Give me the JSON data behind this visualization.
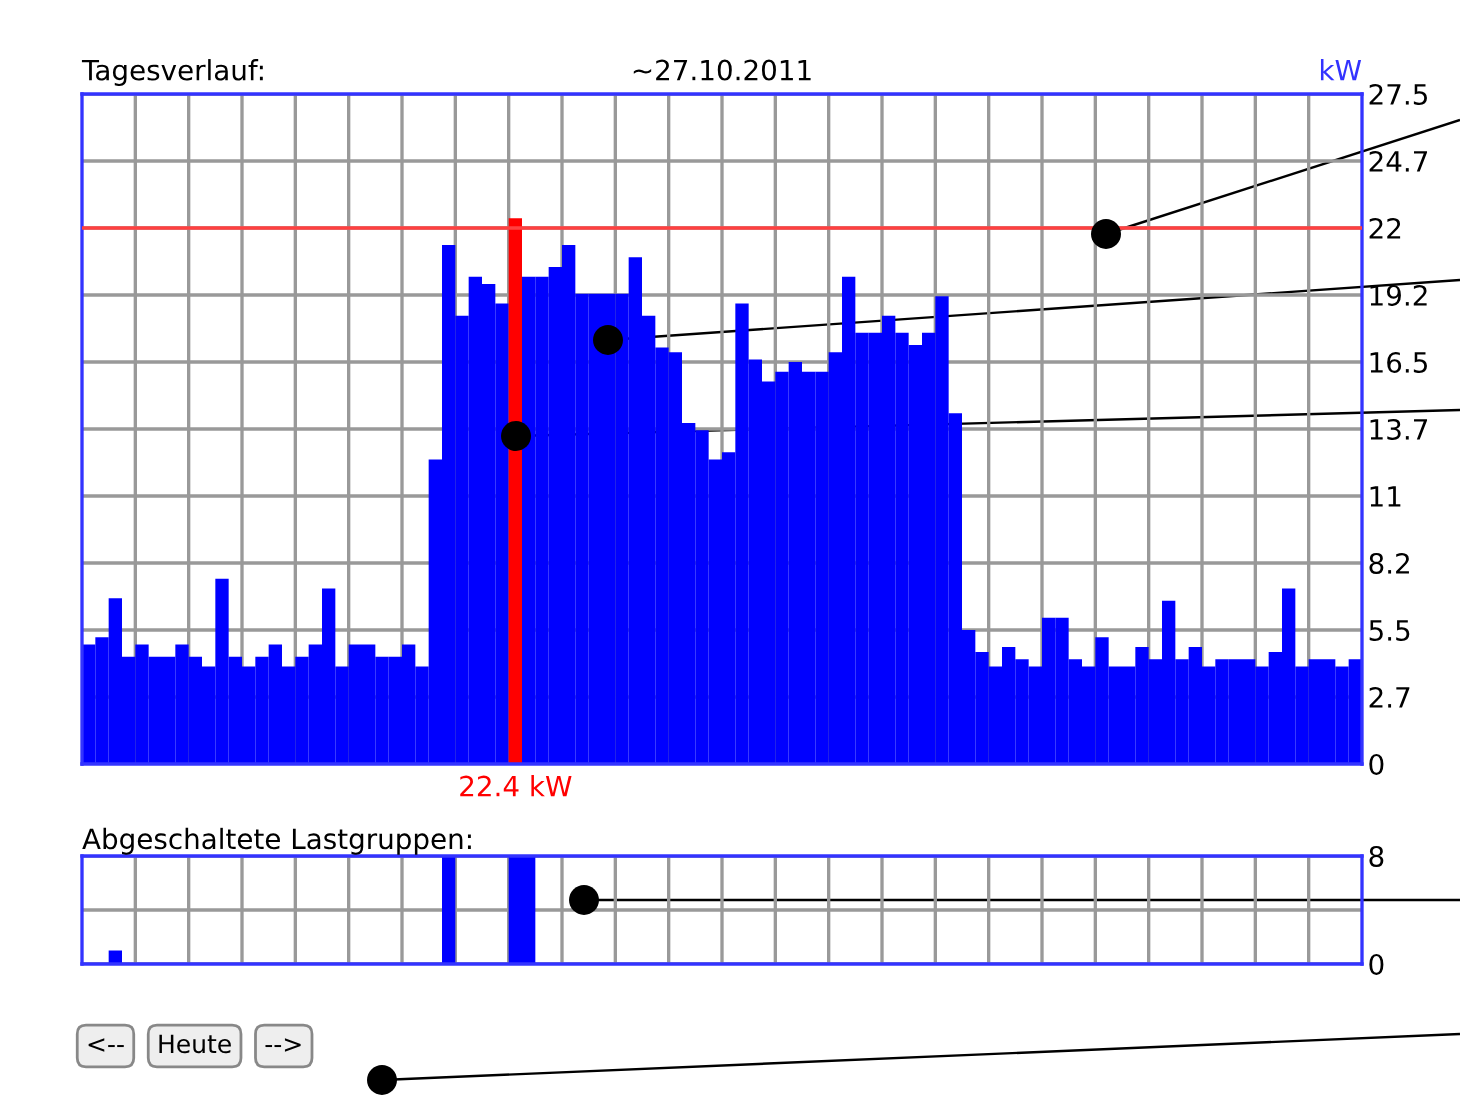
{
  "chart_data": [
    {
      "type": "bar",
      "title": "Tagesverlauf:",
      "subtitle": "~27.10.2011",
      "ylabel": "kW",
      "categories": [
        null,
        null,
        null,
        null,
        null,
        null,
        null,
        null,
        null,
        null,
        null,
        null,
        null,
        null,
        null,
        null,
        null,
        null,
        null,
        null,
        null,
        null,
        null,
        null,
        null,
        null,
        null,
        null,
        null,
        null,
        null,
        null,
        null,
        null,
        null,
        null,
        null,
        null,
        null,
        null,
        null,
        null,
        null,
        null,
        null,
        null,
        null,
        null,
        null,
        null,
        null,
        null,
        null,
        null,
        null,
        null,
        null,
        null,
        null,
        null,
        null,
        null,
        null,
        null,
        null,
        null,
        null,
        null,
        null,
        null,
        null,
        null,
        null,
        null,
        null,
        null,
        null,
        null,
        null,
        null,
        null,
        null,
        null,
        null,
        null,
        null,
        null,
        null,
        null,
        null,
        null,
        null,
        null,
        null,
        null,
        null
      ],
      "values": [
        4.9,
        5.2,
        6.8,
        4.4,
        4.9,
        4.4,
        4.4,
        4.9,
        4.4,
        4.0,
        7.6,
        4.4,
        4.0,
        4.4,
        4.9,
        4.0,
        4.4,
        4.9,
        7.2,
        4.0,
        4.9,
        4.9,
        4.4,
        4.4,
        4.9,
        4.0,
        12.5,
        21.3,
        18.4,
        20.0,
        19.7,
        18.9,
        22.4,
        20.0,
        20.0,
        20.4,
        21.3,
        19.3,
        19.3,
        19.3,
        19.3,
        20.8,
        18.4,
        17.1,
        16.9,
        14.0,
        13.7,
        12.5,
        12.8,
        18.9,
        16.6,
        15.7,
        16.1,
        16.5,
        16.1,
        16.1,
        16.9,
        20.0,
        17.7,
        17.7,
        18.4,
        17.7,
        17.2,
        17.7,
        19.2,
        14.4,
        5.5,
        4.6,
        4.0,
        4.8,
        4.3,
        4.0,
        6.0,
        6.0,
        4.3,
        4.0,
        5.2,
        4.0,
        4.0,
        4.8,
        4.3,
        6.7,
        4.3,
        4.8,
        4.0,
        4.3,
        4.3,
        4.3,
        4.0,
        4.6,
        7.2,
        4.0,
        4.3,
        4.3,
        4.0,
        4.3
      ],
      "colors": [
        "#0000ff",
        "#0000ff",
        "#0000ff",
        "#0000ff",
        "#0000ff",
        "#0000ff",
        "#0000ff",
        "#0000ff",
        "#0000ff",
        "#0000ff",
        "#0000ff",
        "#0000ff",
        "#0000ff",
        "#0000ff",
        "#0000ff",
        "#0000ff",
        "#0000ff",
        "#0000ff",
        "#0000ff",
        "#0000ff",
        "#0000ff",
        "#0000ff",
        "#0000ff",
        "#0000ff",
        "#0000ff",
        "#0000ff",
        "#0000ff",
        "#0000ff",
        "#0000ff",
        "#0000ff",
        "#0000ff",
        "#0000ff",
        "#ff0000",
        "#0000ff",
        "#0000ff",
        "#0000ff",
        "#0000ff",
        "#0000ff",
        "#0000ff",
        "#0000ff",
        "#0000ff",
        "#0000ff",
        "#0000ff",
        "#0000ff",
        "#0000ff",
        "#0000ff",
        "#0000ff",
        "#0000ff",
        "#0000ff",
        "#0000ff",
        "#0000ff",
        "#0000ff",
        "#0000ff",
        "#0000ff",
        "#0000ff",
        "#0000ff",
        "#0000ff",
        "#0000ff",
        "#0000ff",
        "#0000ff",
        "#0000ff",
        "#0000ff",
        "#0000ff",
        "#0000ff",
        "#0000ff",
        "#0000ff",
        "#0000ff",
        "#0000ff",
        "#0000ff",
        "#0000ff",
        "#0000ff",
        "#0000ff",
        "#0000ff",
        "#0000ff",
        "#0000ff",
        "#0000ff",
        "#0000ff",
        "#0000ff",
        "#0000ff",
        "#0000ff",
        "#0000ff",
        "#0000ff",
        "#0000ff",
        "#0000ff",
        "#0000ff",
        "#0000ff",
        "#0000ff",
        "#0000ff",
        "#0000ff",
        "#0000ff",
        "#0000ff",
        "#0000ff",
        "#0000ff",
        "#0000ff",
        "#0000ff",
        "#0000ff"
      ],
      "value_labels": [
        null,
        null,
        null,
        null,
        null,
        null,
        null,
        null,
        null,
        null,
        null,
        null,
        null,
        null,
        null,
        null,
        null,
        null,
        null,
        null,
        null,
        null,
        null,
        null,
        null,
        null,
        null,
        null,
        null,
        null,
        null,
        null,
        "22.4 kW",
        null,
        null,
        null,
        null,
        null,
        null,
        null,
        null,
        null,
        null,
        null,
        null,
        null,
        null,
        null,
        null,
        null,
        null,
        null,
        null,
        null,
        null,
        null,
        null,
        null,
        null,
        null,
        null,
        null,
        null,
        null,
        null,
        null,
        null,
        null,
        null,
        null,
        null,
        null,
        null,
        null,
        null,
        null,
        null,
        null,
        null,
        null,
        null,
        null,
        null,
        null,
        null,
        null,
        null,
        null,
        null,
        null,
        null,
        null,
        null,
        null,
        null,
        null
      ],
      "ylim": [
        0,
        27.5
      ],
      "yticks": [
        0,
        {
          "value": 2.75,
          "label": "2.7"
        },
        5.5,
        {
          "value": 8.25,
          "label": "8.2"
        },
        11,
        {
          "value": 13.75,
          "label": "13.7"
        },
        16.5,
        {
          "value": 19.25,
          "label": "19.2"
        },
        22,
        {
          "value": 24.75,
          "label": "24.7"
        },
        27.5
      ],
      "ref_lines": [
        {
          "axis": "y",
          "value": 22,
          "color": "#ff4040"
        }
      ],
      "grid": true,
      "legend": false
    },
    {
      "type": "bar",
      "title": "Abgeschaltete Lastgruppen:",
      "categories": [
        null,
        null,
        null,
        null,
        null,
        null,
        null,
        null,
        null,
        null,
        null,
        null,
        null,
        null,
        null,
        null,
        null,
        null,
        null,
        null,
        null,
        null,
        null,
        null,
        null,
        null,
        null,
        null,
        null,
        null,
        null,
        null,
        null,
        null,
        null,
        null,
        null,
        null,
        null,
        null,
        null,
        null,
        null,
        null,
        null,
        null,
        null,
        null,
        null,
        null,
        null,
        null,
        null,
        null,
        null,
        null,
        null,
        null,
        null,
        null,
        null,
        null,
        null,
        null,
        null,
        null,
        null,
        null,
        null,
        null,
        null,
        null,
        null,
        null,
        null,
        null,
        null,
        null,
        null,
        null,
        null,
        null,
        null,
        null,
        null,
        null,
        null,
        null,
        null,
        null,
        null,
        null,
        null,
        null,
        null,
        null
      ],
      "values": [
        0,
        0,
        1,
        0,
        0,
        0,
        0,
        0,
        0,
        0,
        0,
        0,
        0,
        0,
        0,
        0,
        0,
        0,
        0,
        0,
        0,
        0,
        0,
        0,
        0,
        0,
        0,
        8,
        0,
        0,
        0,
        0,
        8,
        8,
        0,
        0,
        0,
        0,
        0,
        0,
        0,
        0,
        0,
        0,
        0,
        0,
        0,
        0,
        0,
        0,
        0,
        0,
        0,
        0,
        0,
        0,
        0,
        0,
        0,
        0,
        0,
        0,
        0,
        0,
        0,
        0,
        0,
        0,
        0,
        0,
        0,
        0,
        0,
        0,
        0,
        0,
        0,
        0,
        0,
        0,
        0,
        0,
        0,
        0,
        0,
        0,
        0,
        0,
        0,
        0,
        0,
        0,
        0,
        0,
        0,
        0
      ],
      "color": "#0000ff",
      "ylim": [
        0,
        8
      ],
      "yticks": [
        0,
        {
          "value": 4,
          "label": null
        },
        8
      ],
      "grid": true,
      "legend": false,
      "annotations": [
        "<--",
        "Heute",
        "-->"
      ]
    }
  ]
}
